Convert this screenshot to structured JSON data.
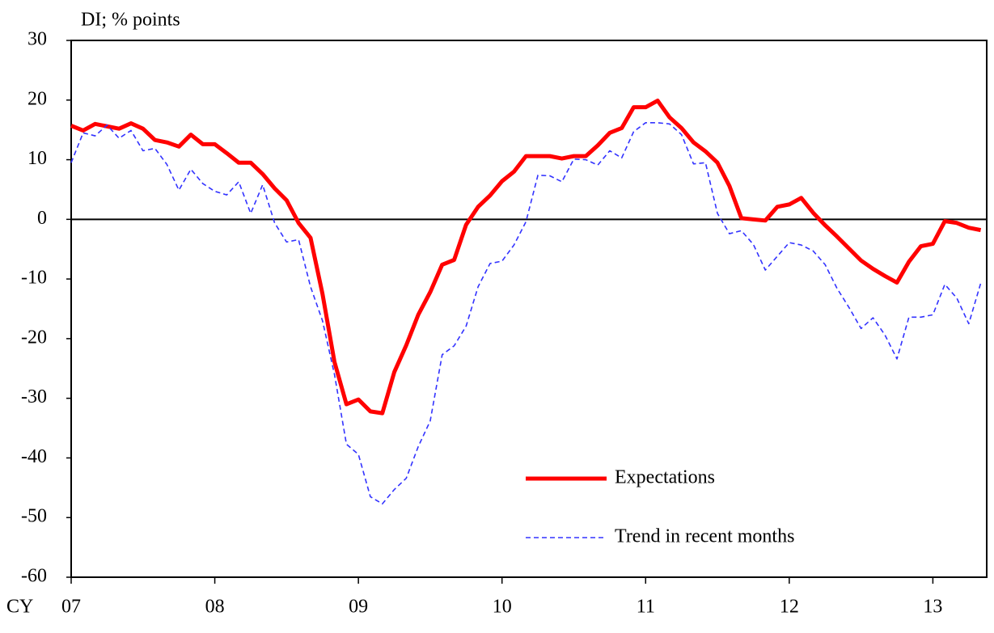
{
  "chart_data": {
    "type": "line",
    "y_label": "DI; % points",
    "x_label": "CY",
    "x": [
      0,
      1,
      2,
      3,
      4,
      5,
      6,
      7,
      8,
      9,
      10,
      11,
      12,
      13,
      14,
      15,
      16,
      17,
      18,
      19,
      20,
      21,
      22,
      23,
      24,
      25,
      26,
      27,
      28,
      29,
      30,
      31,
      32,
      33,
      34,
      35,
      36,
      37,
      38,
      39,
      40,
      41,
      42,
      43,
      44,
      45,
      46,
      47,
      48,
      49,
      50,
      51,
      52,
      53,
      54,
      55,
      56,
      57,
      58,
      59,
      60,
      61,
      62,
      63,
      64,
      65,
      66,
      67,
      68,
      69,
      70,
      71,
      72,
      73,
      74,
      75,
      76
    ],
    "series": [
      {
        "name": "Expectations",
        "color": "#ff0000",
        "linestyle": "solid",
        "values": [
          15.7,
          14.9,
          16.0,
          15.6,
          15.2,
          16.1,
          15.2,
          13.3,
          12.9,
          12.2,
          14.2,
          12.6,
          12.6,
          11.1,
          9.5,
          9.5,
          7.6,
          5.2,
          3.2,
          -0.6,
          -3.1,
          -12.5,
          -23.9,
          -31.0,
          -30.2,
          -32.2,
          -32.5,
          -25.6,
          -21.1,
          -16.0,
          -12.2,
          -7.6,
          -6.8,
          -0.9,
          2.1,
          4.0,
          6.4,
          8.0,
          10.6,
          10.6,
          10.6,
          10.2,
          10.6,
          10.6,
          12.4,
          14.5,
          15.3,
          18.8,
          18.8,
          19.9,
          17.1,
          15.3,
          12.9,
          11.4,
          9.5,
          5.6,
          0.2,
          0.0,
          -0.2,
          2.1,
          2.5,
          3.6,
          1.1,
          -1.0,
          -2.9,
          -4.9,
          -6.9,
          -8.3,
          -9.5,
          -10.6,
          -7.1,
          -4.5,
          -4.1,
          -0.3,
          -0.6,
          -1.4,
          -1.8
        ]
      },
      {
        "name": "Trend in recent months",
        "color": "#3333ff",
        "linestyle": "dashed",
        "values": [
          9.5,
          14.5,
          14.0,
          15.8,
          13.6,
          14.9,
          11.5,
          11.9,
          9.2,
          4.9,
          8.4,
          6.0,
          4.7,
          4.1,
          6.3,
          1.0,
          5.8,
          -0.6,
          -3.8,
          -3.4,
          -11.3,
          -17.0,
          -26.0,
          -37.7,
          -39.4,
          -46.5,
          -47.7,
          -45.3,
          -43.4,
          -38.1,
          -33.8,
          -22.7,
          -21.2,
          -17.9,
          -11.3,
          -7.4,
          -7.0,
          -4.3,
          -0.4,
          7.4,
          7.3,
          6.3,
          10.1,
          10.0,
          9.1,
          11.5,
          10.3,
          14.7,
          16.2,
          16.2,
          16.0,
          14.2,
          9.3,
          9.5,
          1.0,
          -2.4,
          -1.9,
          -4.2,
          -8.5,
          -6.2,
          -3.9,
          -4.3,
          -5.3,
          -7.6,
          -11.6,
          -14.8,
          -18.3,
          -16.5,
          -19.4,
          -23.4,
          -16.4,
          -16.4,
          -16.0,
          -10.9,
          -13.2,
          -17.5,
          -10.7
        ]
      }
    ],
    "xlim": [
      0,
      76.5
    ],
    "xticks": [
      {
        "value": 0,
        "label": "07"
      },
      {
        "value": 12,
        "label": "08"
      },
      {
        "value": 24,
        "label": "09"
      },
      {
        "value": 36,
        "label": "10"
      },
      {
        "value": 48,
        "label": "11"
      },
      {
        "value": 60,
        "label": "12"
      },
      {
        "value": 72,
        "label": "13"
      }
    ],
    "ylim": [
      -60,
      30
    ],
    "yticks": [
      -60,
      -50,
      -40,
      -30,
      -20,
      -10,
      0,
      10,
      20,
      30
    ],
    "zero_line": true,
    "legend": "lower right"
  }
}
